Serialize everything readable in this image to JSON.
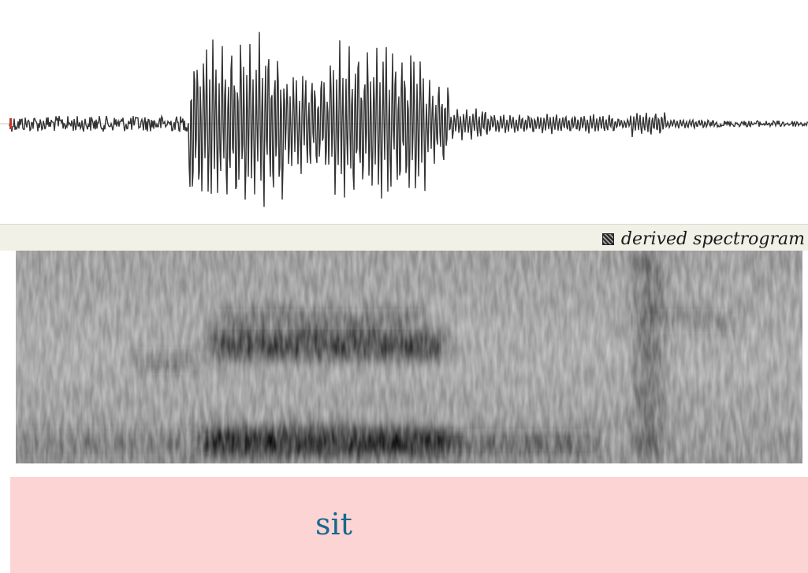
{
  "spectrogram_label": {
    "text": "derived spectrogram",
    "icon": "checkerboard-icon"
  },
  "transcript": {
    "word": "sit"
  },
  "colors": {
    "waveform": "#333333",
    "label_bar": "#f1f1e7",
    "transcript_background": "#fdd4d4",
    "transcript_text": "#16698e"
  }
}
